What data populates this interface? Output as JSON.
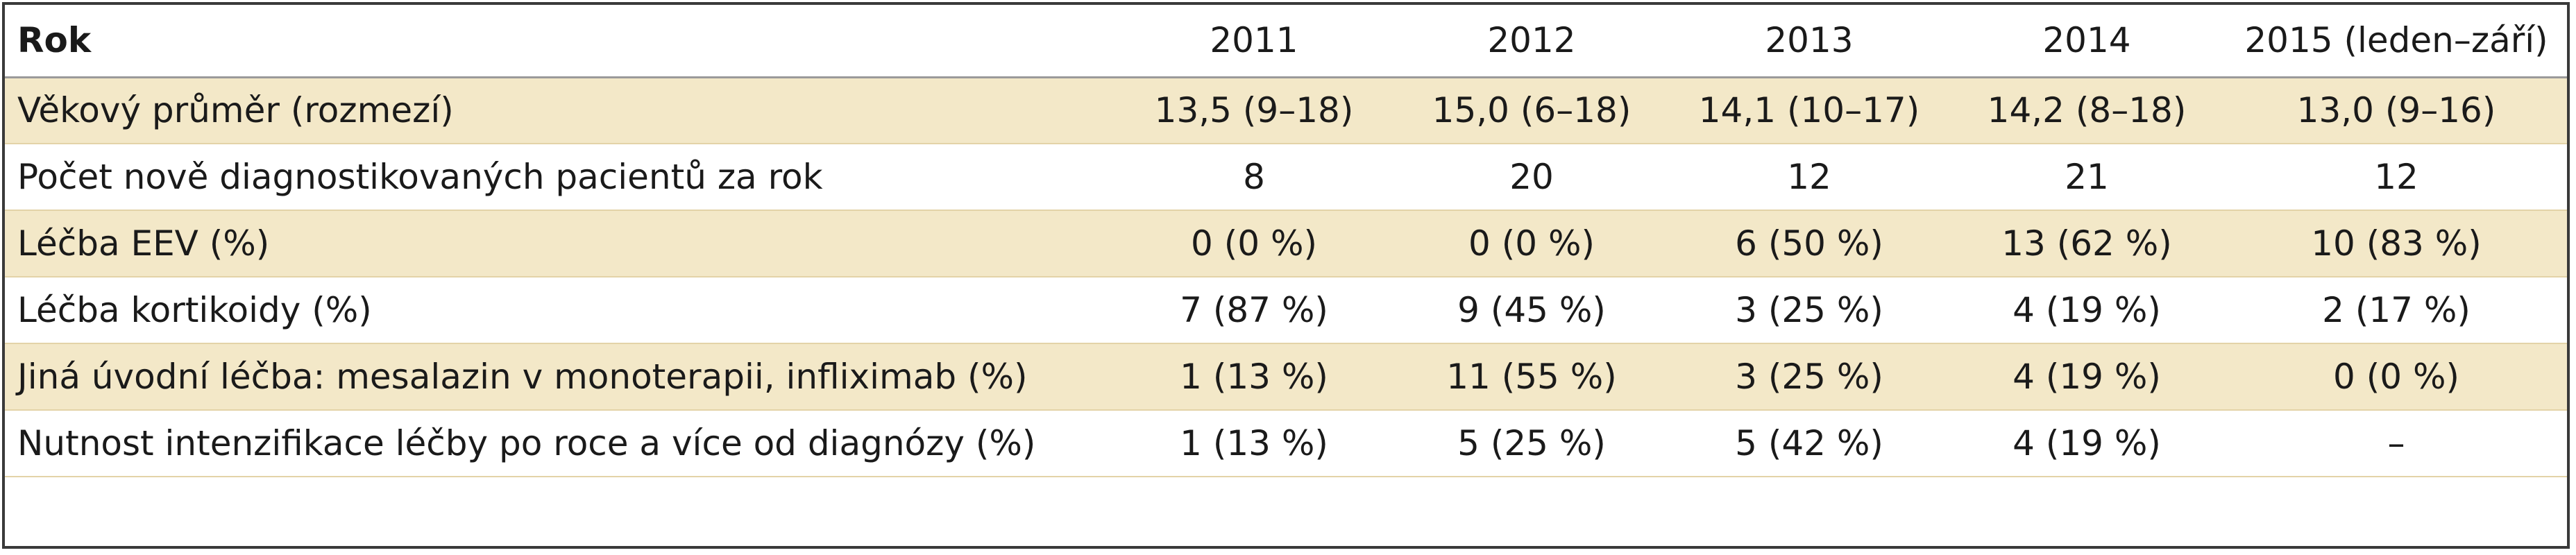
{
  "table": {
    "header": {
      "label": "Rok",
      "years": [
        "2011",
        "2012",
        "2013",
        "2014",
        "2015 (leden–září)"
      ]
    },
    "rows": [
      {
        "label": "Věkový průměr (rozmezí)",
        "values": [
          "13,5 (9–18)",
          "15,0 (6–18)",
          "14,1 (10–17)",
          "14,2 (8–18)",
          "13,0 (9–16)"
        ]
      },
      {
        "label": "Počet nově diagnostikovaných pacientů za rok",
        "values": [
          "8",
          "20",
          "12",
          "21",
          "12"
        ]
      },
      {
        "label": "Léčba EEV (%)",
        "values": [
          "0 (0 %)",
          "0 (0 %)",
          "6 (50 %)",
          "13 (62 %)",
          "10 (83 %)"
        ]
      },
      {
        "label": "Léčba kortikoidy (%)",
        "values": [
          "7 (87 %)",
          "9 (45 %)",
          "3 (25 %)",
          "4 (19 %)",
          "2 (17 %)"
        ]
      },
      {
        "label": "Jiná úvodní léčba: mesalazin v monoterapii, infliximab (%)",
        "values": [
          "1 (13 %)",
          "11 (55 %)",
          "3 (25 %)",
          "4 (19 %)",
          "0 (0 %)"
        ]
      },
      {
        "label": "Nutnost intenzifikace léčby po roce a více od diagnózy (%)",
        "values": [
          "1 (13 %)",
          "5 (25 %)",
          "5 (42 %)",
          "4 (19 %)",
          "–"
        ]
      }
    ]
  }
}
